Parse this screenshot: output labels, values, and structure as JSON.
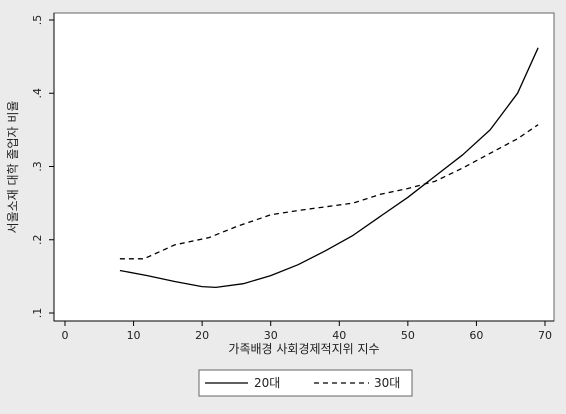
{
  "chart_data": {
    "type": "line",
    "title": "",
    "xlabel": "가족배경 사회경제적지위 지수",
    "ylabel": "서울소재 대학 졸업자 비율",
    "xlim": [
      0,
      70
    ],
    "ylim": [
      0.1,
      0.5
    ],
    "x_ticks": [
      0,
      10,
      20,
      30,
      40,
      50,
      60,
      70
    ],
    "x_tick_labels": [
      "0",
      "10",
      "20",
      "30",
      "40",
      "50",
      "60",
      "70"
    ],
    "y_ticks": [
      0.1,
      0.2,
      0.3,
      0.4,
      0.5
    ],
    "y_tick_labels": [
      ".1",
      ".2",
      ".3",
      ".4",
      ".5"
    ],
    "grid": false,
    "legend_position": "bottom",
    "series": [
      {
        "name": "20대",
        "style": "solid",
        "color": "#000000",
        "points": [
          [
            8,
            0.158
          ],
          [
            12,
            0.151
          ],
          [
            16,
            0.143
          ],
          [
            20,
            0.136
          ],
          [
            22,
            0.135
          ],
          [
            26,
            0.14
          ],
          [
            30,
            0.151
          ],
          [
            34,
            0.166
          ],
          [
            38,
            0.185
          ],
          [
            42,
            0.206
          ],
          [
            46,
            0.232
          ],
          [
            50,
            0.258
          ],
          [
            54,
            0.287
          ],
          [
            58,
            0.316
          ],
          [
            62,
            0.35
          ],
          [
            66,
            0.4
          ],
          [
            69,
            0.462
          ]
        ]
      },
      {
        "name": "30대",
        "style": "dashed",
        "color": "#000000",
        "points": [
          [
            8,
            0.174
          ],
          [
            11.5,
            0.174
          ],
          [
            16,
            0.193
          ],
          [
            21,
            0.203
          ],
          [
            25,
            0.218
          ],
          [
            30,
            0.234
          ],
          [
            34,
            0.24
          ],
          [
            38,
            0.245
          ],
          [
            42,
            0.25
          ],
          [
            46,
            0.262
          ],
          [
            50,
            0.27
          ],
          [
            54,
            0.28
          ],
          [
            58,
            0.298
          ],
          [
            62,
            0.318
          ],
          [
            66,
            0.338
          ],
          [
            69,
            0.357
          ]
        ]
      }
    ]
  }
}
